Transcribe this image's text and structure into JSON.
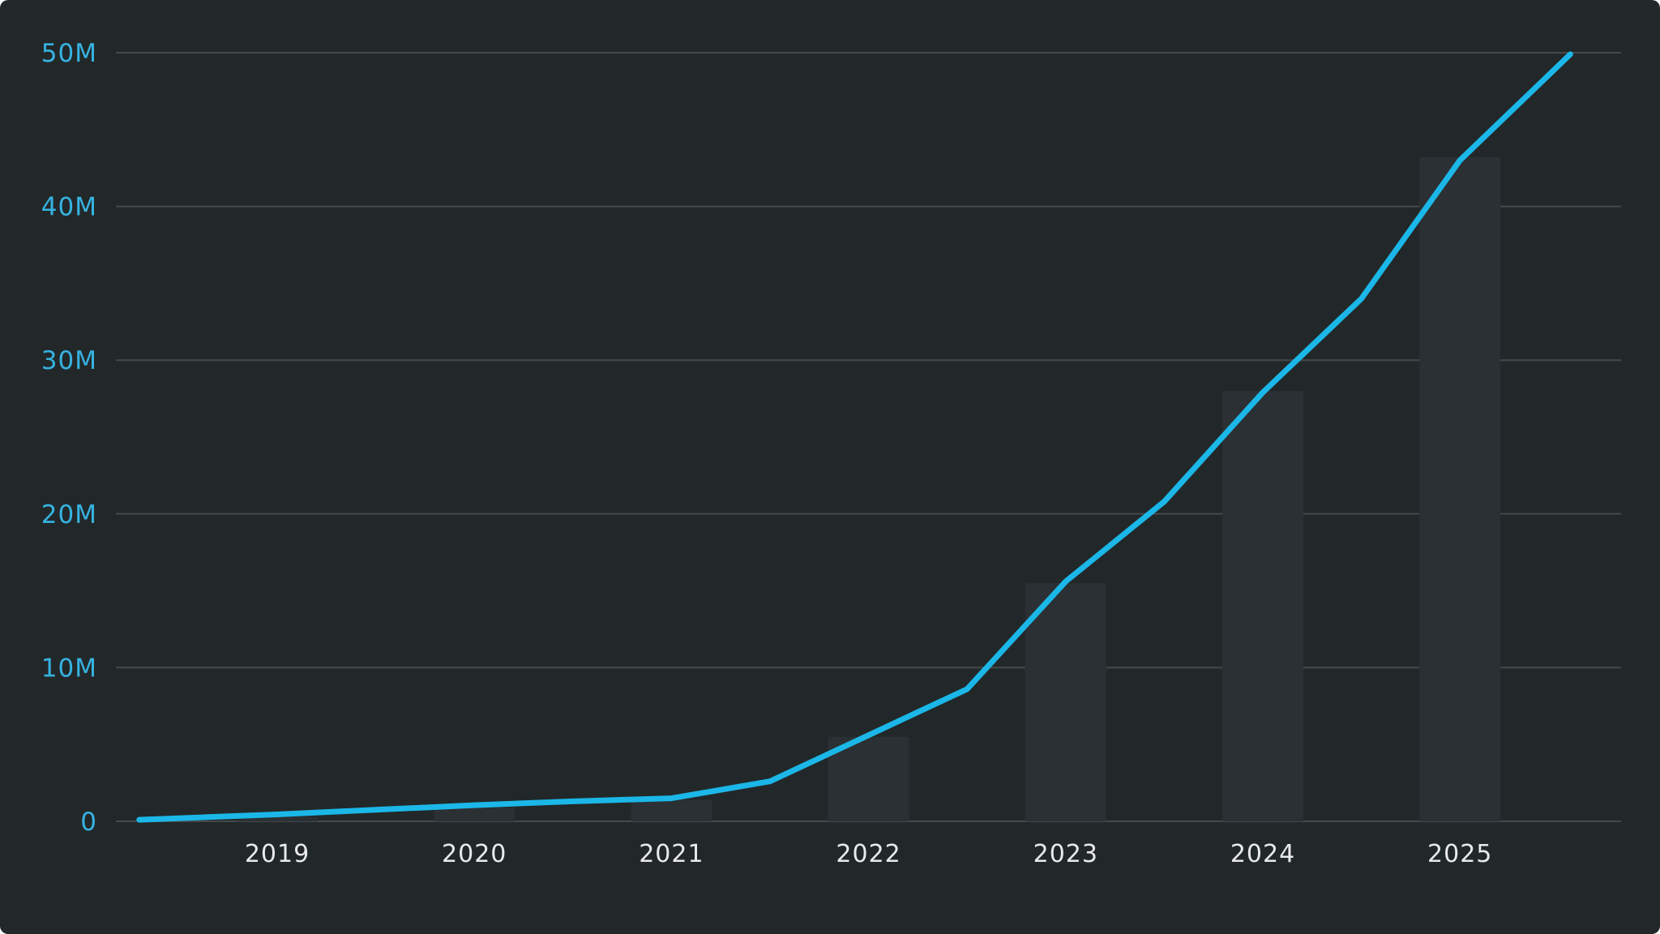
{
  "chart_data": {
    "type": "line",
    "title": "",
    "xlabel": "",
    "ylabel": "",
    "grid": true,
    "legend_position": "none",
    "y_axis": {
      "unit": "M",
      "range_millions": [
        0,
        50
      ],
      "ticks": [
        {
          "value": 0,
          "label": "0"
        },
        {
          "value": 10,
          "label": "10M"
        },
        {
          "value": 20,
          "label": "20M"
        },
        {
          "value": 30,
          "label": "30M"
        },
        {
          "value": 40,
          "label": "40M"
        },
        {
          "value": 50,
          "label": "50M"
        }
      ]
    },
    "x_axis": {
      "range_years": [
        2018.27,
        2025.62
      ],
      "ticks": [
        {
          "year": 2019,
          "label": "2019"
        },
        {
          "year": 2020,
          "label": "2020"
        },
        {
          "year": 2021,
          "label": "2021"
        },
        {
          "year": 2022,
          "label": "2022"
        },
        {
          "year": 2023,
          "label": "2023"
        },
        {
          "year": 2024,
          "label": "2024"
        },
        {
          "year": 2025,
          "label": "2025"
        }
      ]
    },
    "series": [
      {
        "name": "growth-line",
        "type": "line",
        "color": "#1bb7e8",
        "x_years": [
          2018.3,
          2019,
          2019.5,
          2020,
          2020.5,
          2021,
          2021.5,
          2022,
          2022.5,
          2023,
          2023.5,
          2024,
          2024.5,
          2025,
          2025.56
        ],
        "values_millions": [
          0.1,
          0.45,
          0.75,
          1.05,
          1.3,
          1.5,
          2.6,
          5.6,
          8.6,
          15.6,
          20.8,
          27.9,
          34.0,
          43.0,
          49.9
        ]
      },
      {
        "name": "yearly-bars",
        "type": "bar",
        "color": "#2a3033",
        "categories": [
          2019,
          2020,
          2021,
          2022,
          2023,
          2024,
          2025
        ],
        "values_millions": [
          0.3,
          0.9,
          1.4,
          5.5,
          15.5,
          28.0,
          43.2
        ]
      }
    ],
    "colors": {
      "background": "#222829",
      "gridline": "#45494c",
      "y_tick_label": "#36b3e2",
      "x_tick_label": "#e9eaea",
      "line": "#1bb7e8",
      "bar": "#2a3033"
    }
  }
}
